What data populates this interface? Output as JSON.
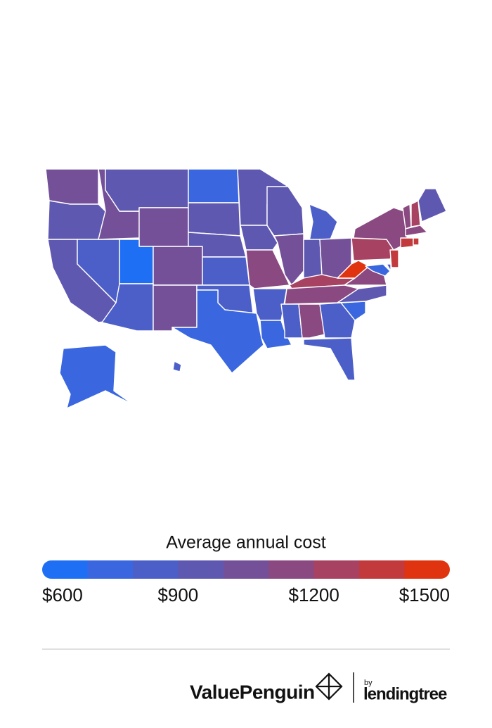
{
  "chart_data": {
    "type": "choropleth",
    "legend_title": "Average annual cost",
    "values": [
      1050,
      950,
      950,
      850,
      1050,
      950,
      1050,
      650,
      1050,
      850,
      1000,
      750,
      950,
      950,
      850,
      850,
      750,
      950,
      950,
      1150,
      850,
      750,
      950,
      1050,
      850,
      950,
      1050,
      1250,
      1150,
      850,
      1100,
      850,
      800,
      750,
      950,
      1150,
      1450,
      1250,
      1150,
      1350,
      700,
      800,
      1150,
      1250,
      950,
      1150,
      1350,
      1300,
      750,
      850
    ],
    "colorlim": [
      600,
      1500
    ],
    "colors": [
      "#1f6ff5",
      "#3a67df",
      "#4c5fc8",
      "#5f58b1",
      "#745099",
      "#8b4981",
      "#a74262",
      "#c33a3c",
      "#e03310"
    ],
    "colorticks": [
      {
        "value": 600,
        "label": "$600"
      },
      {
        "value": 900,
        "label": "$900"
      },
      {
        "value": 1200,
        "label": "$1200"
      },
      {
        "value": 1500,
        "label": "$1500"
      }
    ]
  },
  "footer": {
    "brand": "ValuePenguin",
    "by": "by",
    "partner": "lendingtree"
  }
}
